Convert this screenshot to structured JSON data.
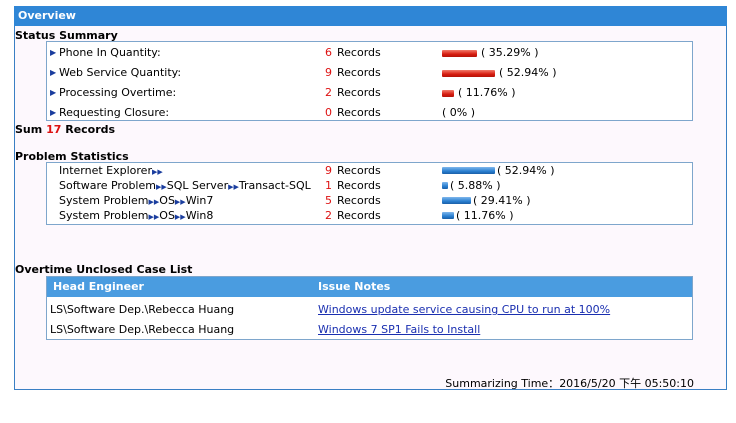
{
  "title": "Overview",
  "status_summary": {
    "heading": "Status Summary",
    "items": [
      {
        "label": "Phone In Quantity:",
        "count": "6",
        "unit": "Records",
        "pct_text": "( 35.29% )",
        "fraction": 0.3529
      },
      {
        "label": "Web Service Quantity:",
        "count": "9",
        "unit": "Records",
        "pct_text": "( 52.94% )",
        "fraction": 0.5294
      },
      {
        "label": "Processing Overtime:",
        "count": "2",
        "unit": "Records",
        "pct_text": "( 11.76% )",
        "fraction": 0.1176
      },
      {
        "label": "Requesting Closure:",
        "count": "0",
        "unit": "Records",
        "pct_text": "( 0% )",
        "fraction": 0
      }
    ]
  },
  "sum": {
    "prefix": "Sum",
    "value": "17",
    "suffix": "Records"
  },
  "problem_statistics": {
    "heading": "Problem Statistics",
    "items": [
      {
        "path": [
          "Internet Explorer"
        ],
        "trail": true,
        "count": "9",
        "unit": "Records",
        "pct_text": "( 52.94% )",
        "fraction": 0.5294
      },
      {
        "path": [
          "Software Problem",
          "SQL Server",
          "Transact-SQL"
        ],
        "trail": false,
        "count": "1",
        "unit": "Records",
        "pct_text": "( 5.88% )",
        "fraction": 0.0588
      },
      {
        "path": [
          "System Problem",
          "OS",
          "Win7"
        ],
        "trail": false,
        "count": "5",
        "unit": "Records",
        "pct_text": "( 29.41% )",
        "fraction": 0.2941
      },
      {
        "path": [
          "System Problem",
          "OS",
          "Win8"
        ],
        "trail": false,
        "count": "2",
        "unit": "Records",
        "pct_text": "( 11.76% )",
        "fraction": 0.1176
      }
    ]
  },
  "overtime": {
    "heading": "Overtime Unclosed Case List",
    "columns": [
      "Head Engineer",
      "Issue Notes"
    ],
    "rows": [
      {
        "engineer": "LS\\Software Dep.\\Rebecca Huang",
        "note": "Windows update service causing CPU to run at 100%"
      },
      {
        "engineer": "LS\\Software Dep.\\Rebecca Huang",
        "note": "Windows 7 SP1 Fails to Install"
      }
    ]
  },
  "footer": {
    "label": "Summarizing Time：",
    "value": "2016/5/20 下午 05:50:10"
  },
  "colors": {
    "header": "#2f86d6",
    "count": "#dd1111",
    "bar_red": "#d61c10",
    "bar_blue": "#2a7fd0"
  },
  "icons": {
    "row_marker": "triangle-right-icon",
    "path_separator": "double-chevron-right-icon"
  }
}
